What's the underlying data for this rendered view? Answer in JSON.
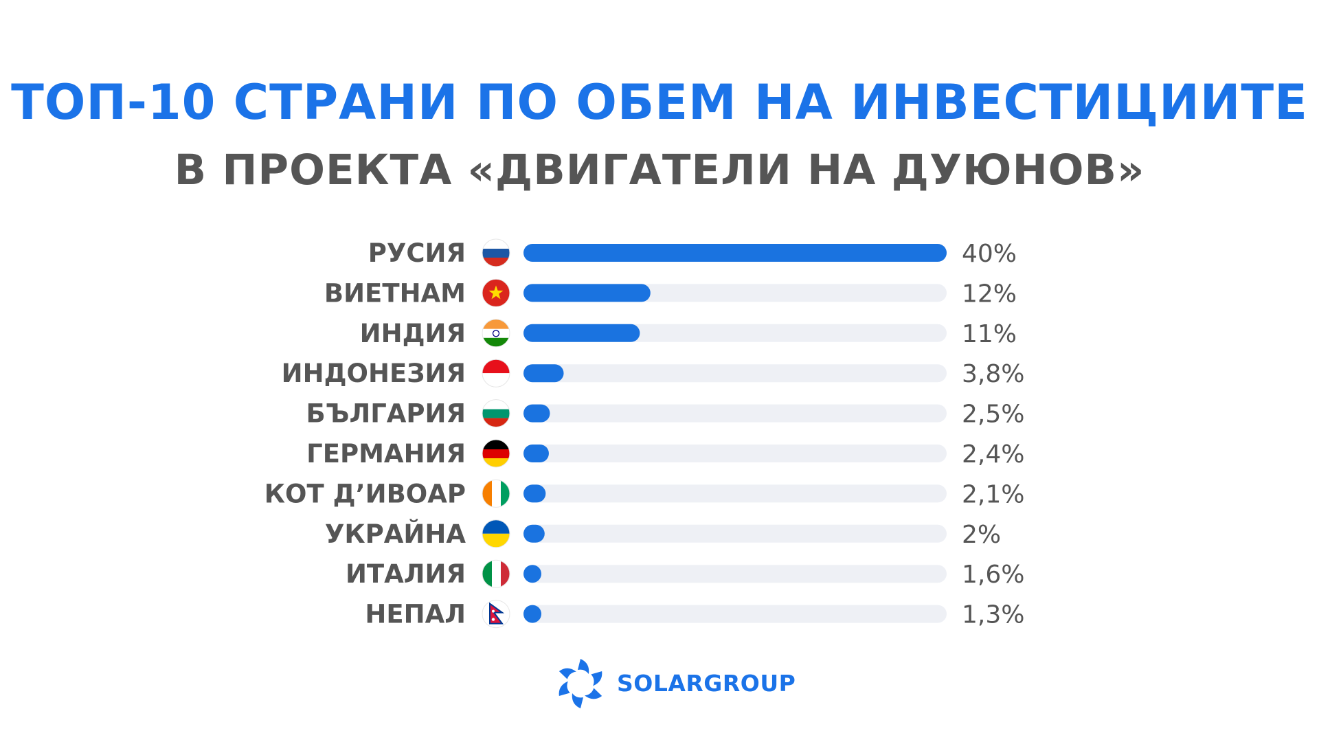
{
  "header": {
    "title": "ТОП-10 СТРАНИ ПО ОБЕМ НА ИНВЕСТИЦИИТЕ",
    "subtitle": "В ПРОЕКТА «ДВИГАТЕЛИ НА ДУЮНОВ»"
  },
  "colors": {
    "title": "#1b73e8",
    "subtitle": "#555555",
    "label": "#555555",
    "bar": "#1a73e0",
    "track": "#eef0f5",
    "logo": "#1b73e8"
  },
  "chart_data": {
    "type": "bar",
    "orientation": "horizontal",
    "title": "ТОП-10 СТРАНИ ПО ОБЕМ НА ИНВЕСТИЦИИТЕ",
    "subtitle": "В ПРОЕКТА «ДВИГАТЕЛИ НА ДУЮНОВ»",
    "categories": [
      "РУСИЯ",
      "ВИЕТНАМ",
      "ИНДИЯ",
      "ИНДОНЕЗИЯ",
      "БЪЛГАРИЯ",
      "ГЕРМАНИЯ",
      "КОТ Д’ИВОАР",
      "УКРАЙНА",
      "ИТАЛИЯ",
      "НЕПАЛ"
    ],
    "values": [
      40,
      12,
      11,
      3.8,
      2.5,
      2.4,
      2.1,
      2,
      1.6,
      1.3
    ],
    "value_labels": [
      "40%",
      "12%",
      "11%",
      "3,8%",
      "2,5%",
      "2,4%",
      "2,1%",
      "2%",
      "1,6%",
      "1,3%"
    ],
    "flags": [
      "russia-flag-icon",
      "vietnam-flag-icon",
      "india-flag-icon",
      "indonesia-flag-icon",
      "bulgaria-flag-icon",
      "germany-flag-icon",
      "ivory-coast-flag-icon",
      "ukraine-flag-icon",
      "italy-flag-icon",
      "nepal-flag-icon"
    ],
    "xlim": [
      0,
      40
    ],
    "grid": false,
    "legend": "none"
  },
  "logo": {
    "text": "SOLARGROUP",
    "icon": "solargroup-logo-icon"
  }
}
